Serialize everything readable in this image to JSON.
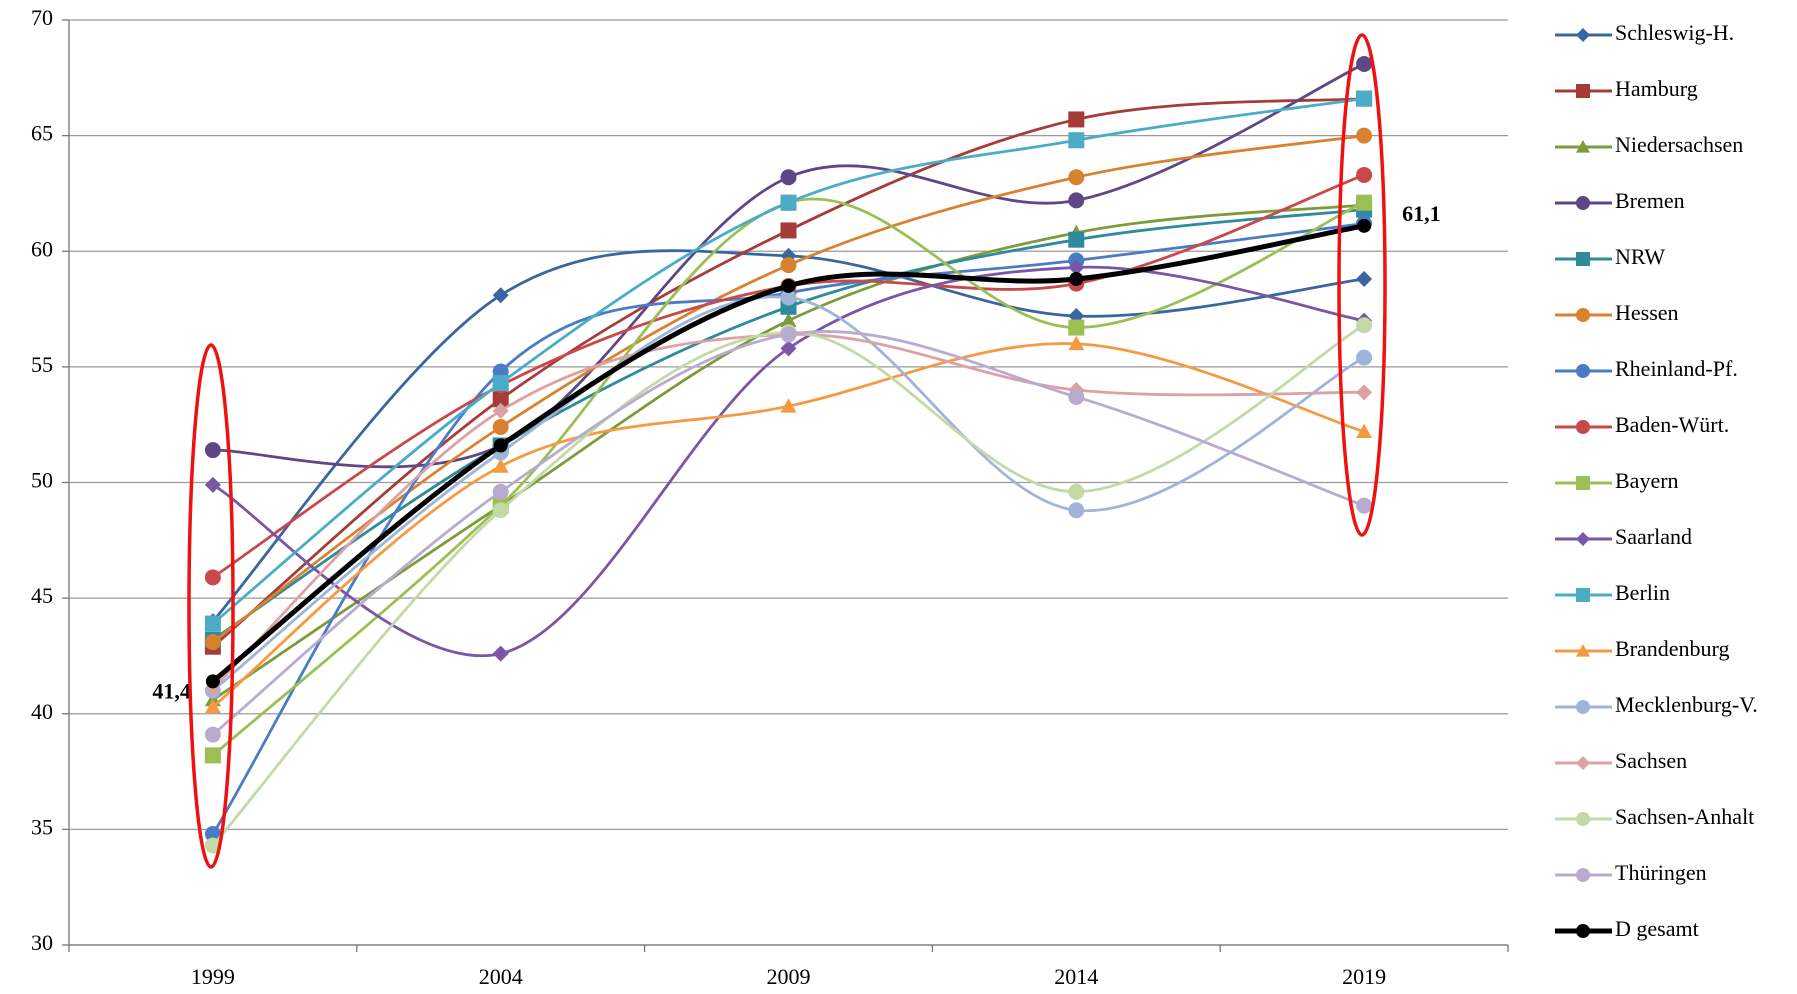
{
  "chart_data": {
    "type": "line",
    "categories": [
      "1999",
      "2004",
      "2009",
      "2014",
      "2019"
    ],
    "ylim": [
      30,
      70
    ],
    "yticks": [
      30,
      35,
      40,
      45,
      50,
      55,
      60,
      65,
      70
    ],
    "grid": true,
    "smooth": true,
    "legend": "right",
    "series": [
      {
        "name": "Schleswig-H.",
        "color": "#3a66a0",
        "marker": "diamond",
        "values": [
          44.0,
          58.1,
          59.8,
          57.2,
          58.8
        ]
      },
      {
        "name": "Hamburg",
        "color": "#a63c38",
        "marker": "square",
        "values": [
          42.9,
          53.6,
          60.9,
          65.7,
          66.6
        ]
      },
      {
        "name": "Niedersachsen",
        "color": "#7e9b3c",
        "marker": "triangle",
        "values": [
          40.6,
          49.0,
          57.0,
          60.8,
          62.0
        ]
      },
      {
        "name": "Bremen",
        "color": "#5f4785",
        "marker": "circle",
        "values": [
          51.4,
          51.6,
          63.2,
          62.2,
          68.1
        ]
      },
      {
        "name": "NRW",
        "color": "#2f8b9c",
        "marker": "square",
        "values": [
          43.2,
          51.6,
          57.6,
          60.5,
          61.8
        ]
      },
      {
        "name": "Hessen",
        "color": "#d8822f",
        "marker": "circle",
        "values": [
          43.1,
          52.4,
          59.4,
          63.2,
          65.0
        ]
      },
      {
        "name": "Rheinland-Pf.",
        "color": "#4a7cc6",
        "marker": "circle",
        "values": [
          34.8,
          54.8,
          58.2,
          59.6,
          61.2
        ]
      },
      {
        "name": "Baden-Würt.",
        "color": "#c9494a",
        "marker": "circle",
        "values": [
          45.9,
          54.2,
          58.5,
          58.6,
          63.3
        ]
      },
      {
        "name": "Bayern",
        "color": "#9bbf55",
        "marker": "square",
        "values": [
          38.2,
          49.0,
          62.1,
          56.7,
          62.1
        ]
      },
      {
        "name": "Saarland",
        "color": "#7a56a6",
        "marker": "diamond",
        "values": [
          49.9,
          42.6,
          55.8,
          59.3,
          57.0
        ]
      },
      {
        "name": "Berlin",
        "color": "#4aacc6",
        "marker": "square",
        "values": [
          43.9,
          54.3,
          62.1,
          64.8,
          66.6
        ]
      },
      {
        "name": "Brandenburg",
        "color": "#f59a43",
        "marker": "triangle",
        "values": [
          40.3,
          50.7,
          53.3,
          56.0,
          52.2
        ]
      },
      {
        "name": "Mecklenburg-V.",
        "color": "#9fb4d8",
        "marker": "circle",
        "values": [
          41.0,
          51.3,
          58.0,
          48.8,
          55.4
        ]
      },
      {
        "name": "Sachsen",
        "color": "#dca2a2",
        "marker": "diamond",
        "values": [
          41.1,
          53.1,
          56.4,
          54.0,
          53.9
        ]
      },
      {
        "name": "Sachsen-Anhalt",
        "color": "#c3d9a6",
        "marker": "circle",
        "values": [
          34.3,
          48.8,
          56.5,
          49.6,
          56.8
        ]
      },
      {
        "name": "Thüringen",
        "color": "#b9abd0",
        "marker": "circle",
        "values": [
          39.1,
          49.6,
          56.4,
          53.7,
          49.0
        ]
      },
      {
        "name": "D gesamt",
        "color": "#000000",
        "marker": "circle",
        "values": [
          41.4,
          51.6,
          58.5,
          58.8,
          61.1
        ],
        "value_labels": [
          "41,4",
          null,
          null,
          null,
          "61,1"
        ]
      }
    ]
  }
}
